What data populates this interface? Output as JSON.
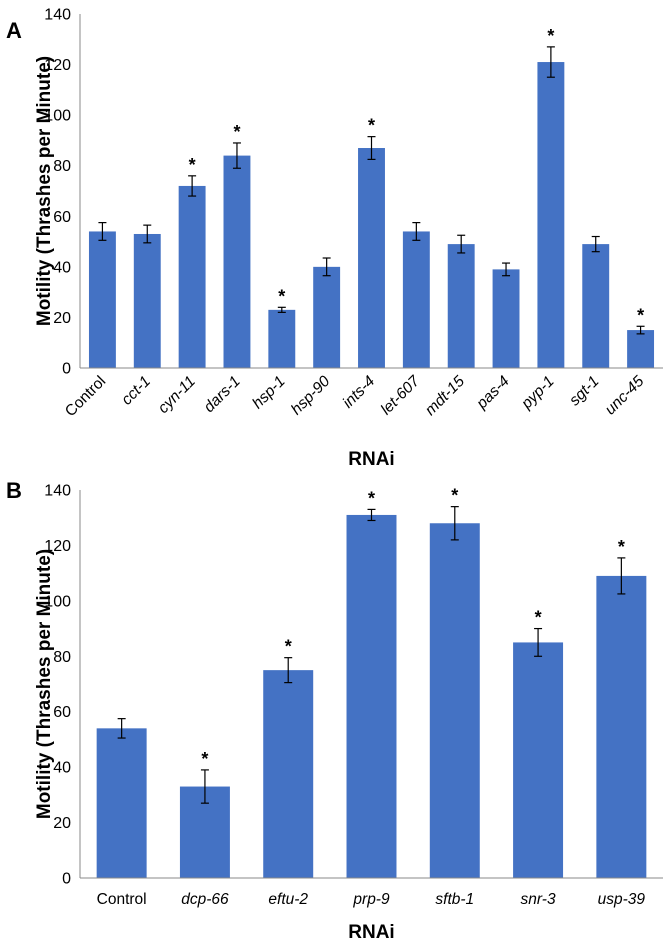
{
  "chart_data": [
    {
      "panel_label": "A",
      "type": "bar",
      "title": "",
      "xlabel": "RNAi",
      "ylabel": "Motility (Thrashes per Minute)",
      "ylim": [
        0,
        140
      ],
      "yticks": [
        "0",
        "20",
        "40",
        "60",
        "80",
        "100",
        "120",
        "140"
      ],
      "categories": [
        "Control",
        "cct-1",
        "cyn-11",
        "dars-1",
        "hsp-1",
        "hsp-90",
        "ints-4",
        "let-607",
        "mdt-15",
        "pas-4",
        "pyp-1",
        "sgt-1",
        "unc-45"
      ],
      "italic": [
        false,
        true,
        true,
        true,
        true,
        true,
        true,
        true,
        true,
        true,
        true,
        true,
        true
      ],
      "values": [
        54,
        53,
        72,
        84,
        23,
        40,
        87,
        54,
        49,
        39,
        121,
        49,
        15
      ],
      "errors": [
        3.5,
        3.5,
        4,
        5,
        1,
        3.5,
        4.5,
        3.5,
        3.5,
        2.5,
        6,
        3,
        1.5
      ],
      "significant": [
        false,
        false,
        true,
        true,
        true,
        false,
        true,
        false,
        false,
        false,
        true,
        false,
        true
      ],
      "annotation": "*",
      "bar_color": "#4472C4",
      "grid": false
    },
    {
      "panel_label": "B",
      "type": "bar",
      "title": "",
      "xlabel": "RNAi",
      "ylabel": "Motility (Thrashes per Minute)",
      "ylim": [
        0,
        140
      ],
      "yticks": [
        "0",
        "20",
        "40",
        "60",
        "80",
        "100",
        "120",
        "140"
      ],
      "categories": [
        "Control",
        "dcp-66",
        "eftu-2",
        "prp-9",
        "sftb-1",
        "snr-3",
        "usp-39"
      ],
      "italic": [
        false,
        true,
        true,
        true,
        true,
        true,
        true
      ],
      "values": [
        54,
        33,
        75,
        131,
        128,
        85,
        109
      ],
      "errors": [
        3.5,
        6,
        4.5,
        2,
        6,
        5,
        6.5
      ],
      "significant": [
        false,
        true,
        true,
        true,
        true,
        true,
        true
      ],
      "annotation": "*",
      "bar_color": "#4472C4",
      "grid": false
    }
  ]
}
